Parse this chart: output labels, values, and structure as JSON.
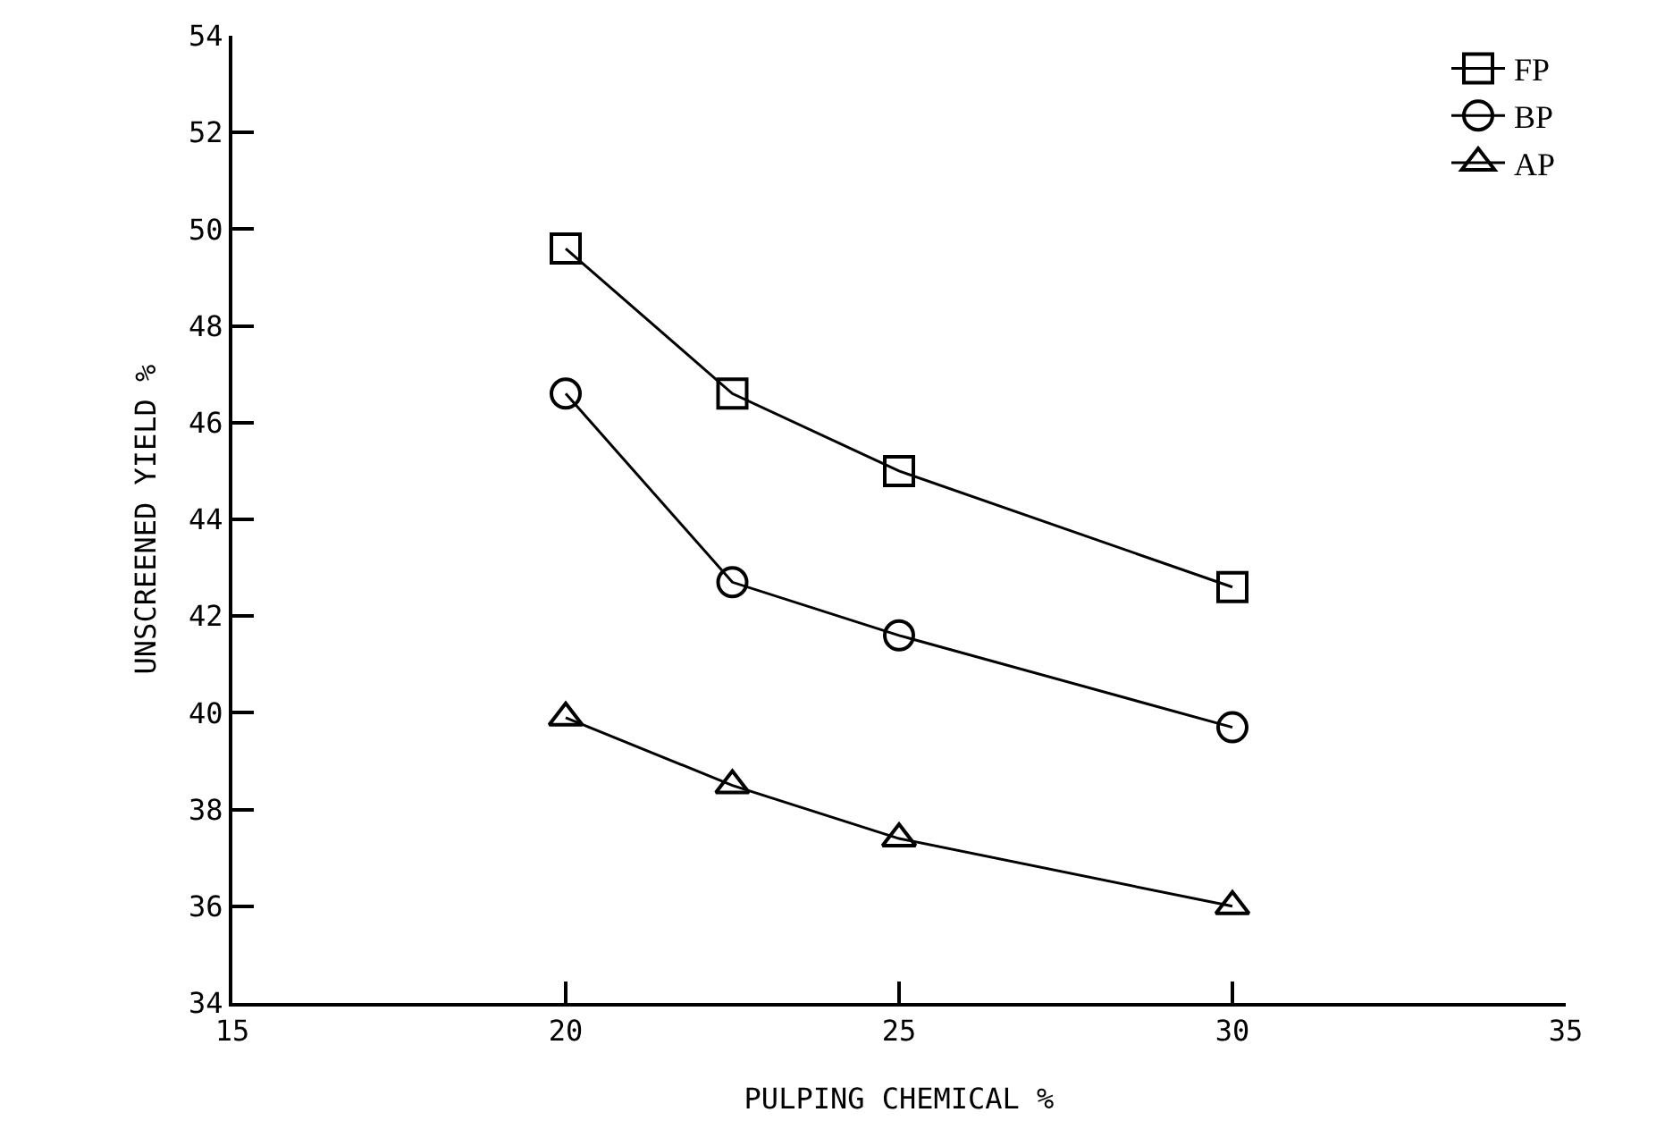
{
  "chart_data": {
    "type": "line",
    "xlabel": "PULPING CHEMICAL %",
    "ylabel": "UNSCREENED YIELD %",
    "x": [
      20,
      22.5,
      25,
      30
    ],
    "series": [
      {
        "name": "FP",
        "color": "#000000",
        "marker": "square",
        "values": [
          49.6,
          46.6,
          45.0,
          42.6
        ]
      },
      {
        "name": "BP",
        "color": "#000000",
        "marker": "circle",
        "values": [
          46.6,
          42.7,
          41.6,
          39.7
        ]
      },
      {
        "name": "AP",
        "color": "#000000",
        "marker": "triangle",
        "values": [
          39.9,
          38.5,
          37.4,
          36.0
        ]
      }
    ],
    "xlim": [
      15,
      35
    ],
    "xticks": [
      15,
      20,
      25,
      30,
      35
    ],
    "ylim": [
      34,
      54
    ],
    "yticks": [
      34,
      36,
      38,
      40,
      42,
      44,
      46,
      48,
      50,
      52,
      54
    ],
    "grid": false,
    "legend": "top right",
    "line_style": "solid"
  }
}
